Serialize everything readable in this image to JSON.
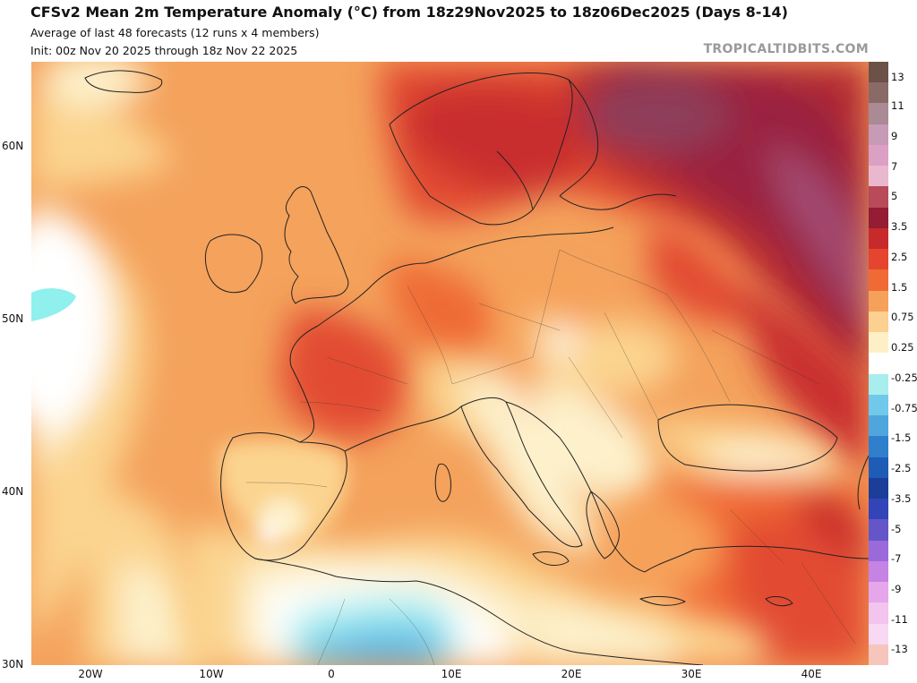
{
  "header": {
    "title": "CFSv2 Mean 2m Temperature Anomaly (°C) from 18z29Nov2025 to 18z06Dec2025 (Days 8-14)",
    "subtitle1": "Average of last 48 forecasts (12 runs x 4 members)",
    "subtitle2": "Init: 00z Nov 20 2025 through 18z Nov 22 2025",
    "brand": "TROPICALTIDBITS.COM"
  },
  "axes": {
    "lat_labels": [
      "60N",
      "50N",
      "40N",
      "30N"
    ],
    "lon_labels": [
      "20W",
      "10W",
      "0",
      "10E",
      "20E",
      "30E",
      "40E"
    ]
  },
  "colorbar": {
    "labels": [
      "13",
      "11",
      "9",
      "7",
      "5",
      "3.5",
      "2.5",
      "1.5",
      "0.75",
      "0.25",
      "-0.25",
      "-0.75",
      "-1.5",
      "-2.5",
      "-3.5",
      "-5",
      "-7",
      "-9",
      "-11",
      "-13"
    ],
    "colors": [
      "#6b5147",
      "#8a6a66",
      "#a98a95",
      "#c79ab5",
      "#dba0c3",
      "#e9b8cf",
      "#b84a5a",
      "#941c34",
      "#c62a2a",
      "#e5452e",
      "#f06a35",
      "#f6a15a",
      "#fbd091",
      "#fdf0c6",
      "#ffffff",
      "#a8eeee",
      "#70c9eb",
      "#4ea6dd",
      "#2f7fcc",
      "#1e5cb6",
      "#1b3e98",
      "#3244b8",
      "#6456c8",
      "#9a6adb",
      "#c584e4",
      "#e6a6ea",
      "#f2c4ee",
      "#f8d8f2",
      "#f6c6bc"
    ]
  },
  "map": {
    "ocean_color": "#f5aa62",
    "border_color": "#222222"
  }
}
